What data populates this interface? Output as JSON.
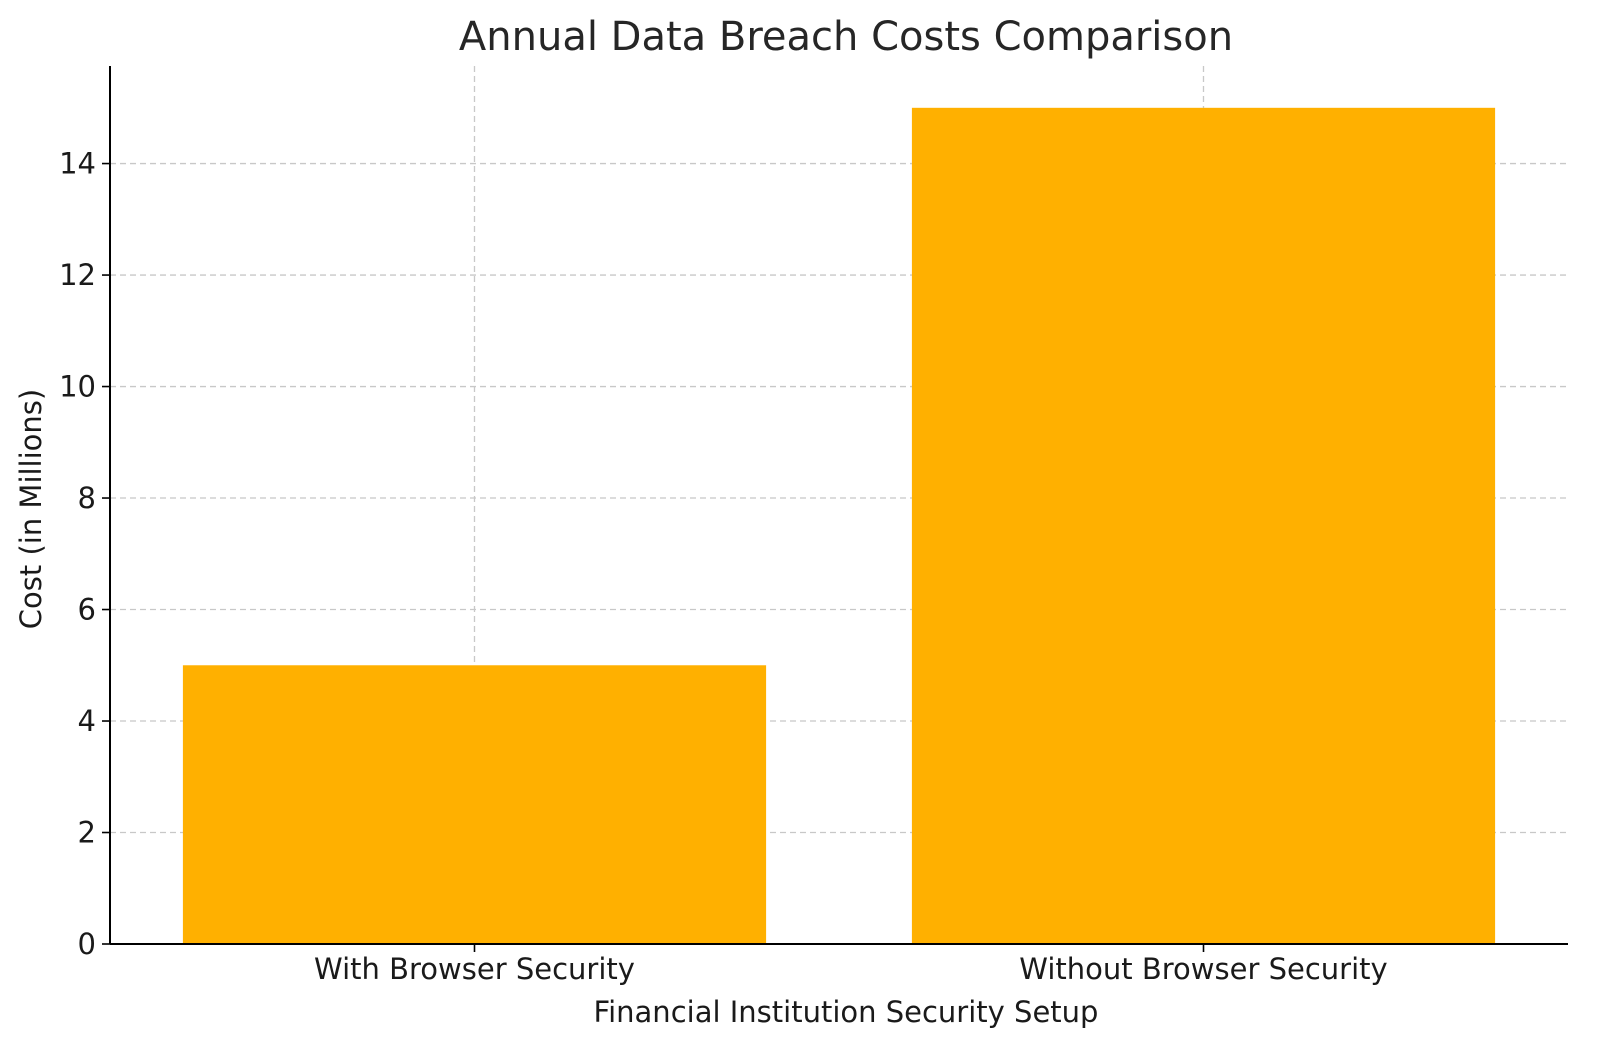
{
  "chart_data": {
    "type": "bar",
    "title": "Annual Data Breach Costs Comparison",
    "xlabel": "Financial Institution Security Setup",
    "ylabel": "Cost (in Millions)",
    "categories": [
      "With Browser Security",
      "Without Browser Security"
    ],
    "values": [
      5,
      15
    ],
    "ylim": [
      0,
      15.75
    ],
    "yticks": [
      0,
      2,
      4,
      6,
      8,
      10,
      12,
      14
    ],
    "grid": true,
    "bar_color": "#FFB000"
  }
}
